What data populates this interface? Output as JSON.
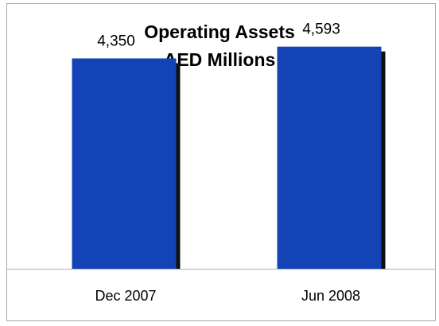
{
  "chart_data": {
    "type": "bar",
    "title": "Operating Assets",
    "subtitle": "AED Millions",
    "categories": [
      "Dec 2007",
      "Jun 2008"
    ],
    "values": [
      4350,
      4593
    ],
    "value_labels": [
      "4,350",
      "4,593"
    ],
    "ylim": [
      0,
      4900
    ],
    "grid": false,
    "legend": "none",
    "colors": {
      "bar": "#1343b4",
      "bar_shadow": "#111111",
      "axis": "#b0b0b0",
      "text": "#000000"
    }
  }
}
